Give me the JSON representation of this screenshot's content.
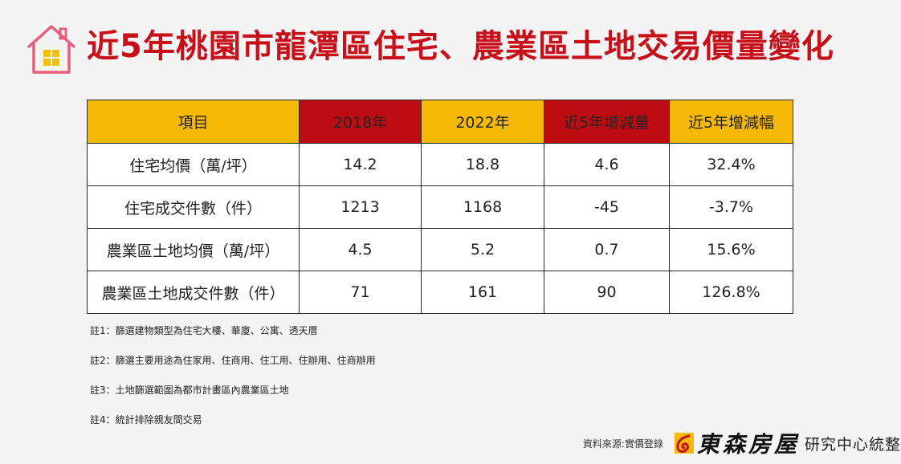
{
  "title": "近5年桃園市龍潭區住宅、農業區土地交易價量變化",
  "icons": {
    "header": "house-icon",
    "brand": "brand-logo-mark"
  },
  "colors": {
    "title": "#c8101b",
    "header_gold": "#f6b908",
    "header_red": "#be0d12",
    "increase": "#d0121c",
    "decrease": "#1e9e3e"
  },
  "table": {
    "headers": [
      "項目",
      "2018年",
      "2022年",
      "近5年增減量",
      "近5年增減幅"
    ],
    "rows": [
      {
        "item": "住宅均價（萬/坪）",
        "y2018": "14.2",
        "y2022": "18.8",
        "change": "4.6",
        "pct": "32.4%"
      },
      {
        "item": "住宅成交件數（件）",
        "y2018": "1213",
        "y2022": "1168",
        "change": "-45",
        "pct": "-3.7%"
      },
      {
        "item": "農業區土地均價（萬/坪）",
        "y2018": "4.5",
        "y2022": "5.2",
        "change": "0.7",
        "pct": "15.6%"
      },
      {
        "item": "農業區土地成交件數（件）",
        "y2018": "71",
        "y2022": "161",
        "change": "90",
        "pct": "126.8%"
      }
    ]
  },
  "notes": [
    "註1：篩選建物類型為住宅大樓、華廈、公寓、透天厝",
    "註2：篩選主要用途為住家用、住商用、住工用、住辦用、住商辦用",
    "註3：土地篩選範圍為都市計畫區內農業區土地",
    "註4：統計排除親友間交易"
  ],
  "footer": {
    "source": "資料來源:實價登錄",
    "brand": "東森房屋",
    "research": "研究中心統整"
  }
}
